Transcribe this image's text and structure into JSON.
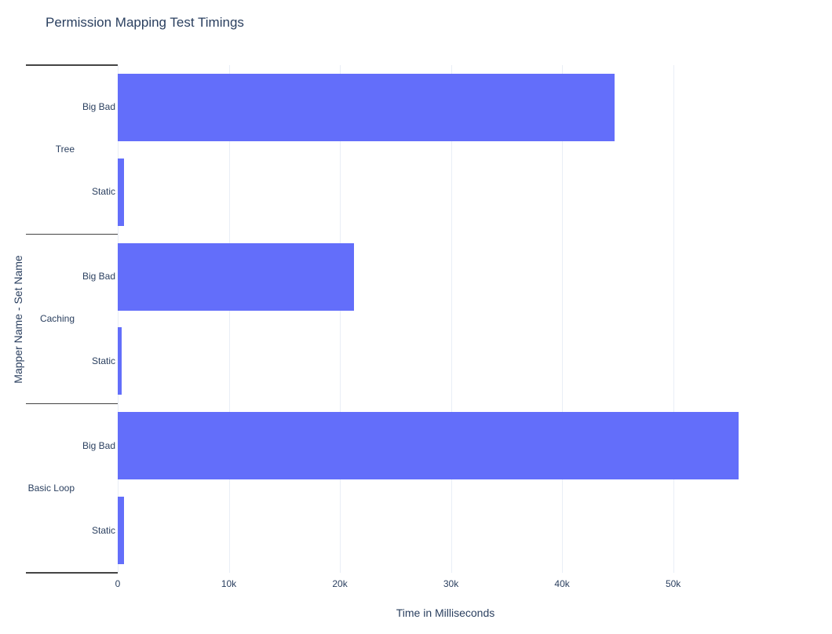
{
  "chart_data": {
    "type": "bar",
    "orientation": "horizontal",
    "title": "Permission Mapping Test Timings",
    "xlabel": "Time in Milliseconds",
    "ylabel": "Mapper Name - Set Name",
    "x_ticks": [
      {
        "label": "0",
        "value": 0
      },
      {
        "label": "10k",
        "value": 10000
      },
      {
        "label": "20k",
        "value": 20000
      },
      {
        "label": "30k",
        "value": 30000
      },
      {
        "label": "40k",
        "value": 40000
      },
      {
        "label": "50k",
        "value": 50000
      }
    ],
    "xlim": [
      0,
      59000
    ],
    "grid": true,
    "legend": false,
    "bar_color": "#636efa",
    "grid_color": "#e9eef6",
    "text_color": "#2a3f5f",
    "divider_color": "#444444",
    "groups": [
      {
        "name": "Tree",
        "bars": [
          {
            "label": "Big Bad",
            "value": 44700
          },
          {
            "label": "Static",
            "value": 550
          }
        ]
      },
      {
        "name": "Caching",
        "bars": [
          {
            "label": "Big Bad",
            "value": 21300
          },
          {
            "label": "Static",
            "value": 350
          }
        ]
      },
      {
        "name": "Basic Loop",
        "bars": [
          {
            "label": "Big Bad",
            "value": 55900
          },
          {
            "label": "Static",
            "value": 550
          }
        ]
      }
    ]
  }
}
